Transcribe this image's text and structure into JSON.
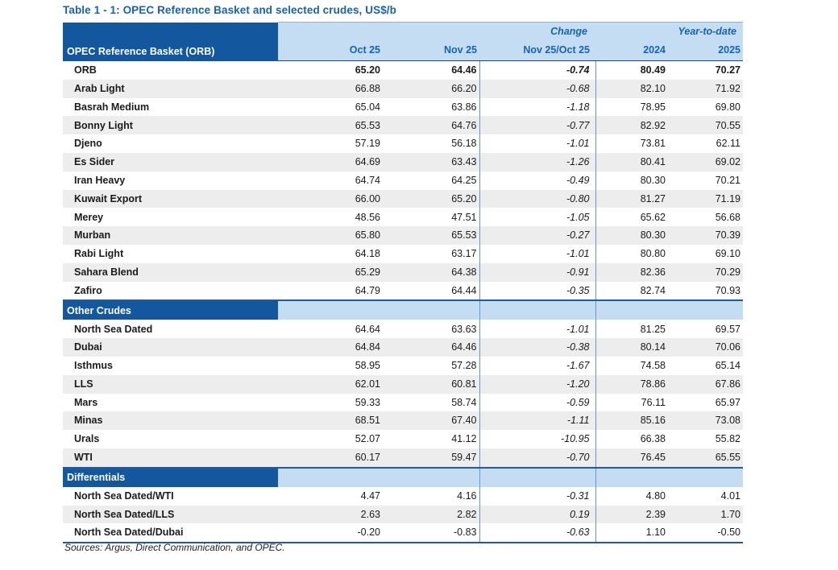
{
  "title": "Table 1 - 1: OPEC Reference Basket and selected crudes, US$/b",
  "header": {
    "name_column": "OPEC Reference Basket (ORB)",
    "group_change": "Change",
    "group_ytd": "Year-to-date",
    "columns": [
      "Oct 25",
      "Nov 25",
      "Nov 25/Oct 25",
      "2024",
      "2025"
    ]
  },
  "table": {
    "sections": [
      {
        "label": null,
        "rows": [
          {
            "name": "ORB",
            "values": [
              "65.20",
              "64.46",
              "-0.74",
              "80.49",
              "70.27"
            ],
            "bold": true
          },
          {
            "name": "Arab Light",
            "values": [
              "66.88",
              "66.20",
              "-0.68",
              "82.10",
              "71.92"
            ]
          },
          {
            "name": "Basrah Medium",
            "values": [
              "65.04",
              "63.86",
              "-1.18",
              "78.95",
              "69.80"
            ]
          },
          {
            "name": "Bonny Light",
            "values": [
              "65.53",
              "64.76",
              "-0.77",
              "82.92",
              "70.55"
            ]
          },
          {
            "name": "Djeno",
            "values": [
              "57.19",
              "56.18",
              "-1.01",
              "73.81",
              "62.11"
            ]
          },
          {
            "name": "Es Sider",
            "values": [
              "64.69",
              "63.43",
              "-1.26",
              "80.41",
              "69.02"
            ]
          },
          {
            "name": "Iran Heavy",
            "values": [
              "64.74",
              "64.25",
              "-0.49",
              "80.30",
              "70.21"
            ]
          },
          {
            "name": "Kuwait Export",
            "values": [
              "66.00",
              "65.20",
              "-0.80",
              "81.27",
              "71.19"
            ]
          },
          {
            "name": "Merey",
            "values": [
              "48.56",
              "47.51",
              "-1.05",
              "65.62",
              "56.68"
            ]
          },
          {
            "name": "Murban",
            "values": [
              "65.80",
              "65.53",
              "-0.27",
              "80.30",
              "70.39"
            ]
          },
          {
            "name": "Rabi Light",
            "values": [
              "64.18",
              "63.17",
              "-1.01",
              "80.80",
              "69.10"
            ]
          },
          {
            "name": "Sahara Blend",
            "values": [
              "65.29",
              "64.38",
              "-0.91",
              "82.36",
              "70.29"
            ]
          },
          {
            "name": "Zafiro",
            "values": [
              "64.79",
              "64.44",
              "-0.35",
              "82.74",
              "70.93"
            ]
          }
        ]
      },
      {
        "label": "Other Crudes",
        "rows": [
          {
            "name": "North Sea Dated",
            "values": [
              "64.64",
              "63.63",
              "-1.01",
              "81.25",
              "69.57"
            ]
          },
          {
            "name": "Dubai",
            "values": [
              "64.84",
              "64.46",
              "-0.38",
              "80.14",
              "70.06"
            ]
          },
          {
            "name": "Isthmus",
            "values": [
              "58.95",
              "57.28",
              "-1.67",
              "74.58",
              "65.14"
            ]
          },
          {
            "name": "LLS",
            "values": [
              "62.01",
              "60.81",
              "-1.20",
              "78.86",
              "67.86"
            ]
          },
          {
            "name": "Mars",
            "values": [
              "59.33",
              "58.74",
              "-0.59",
              "76.11",
              "65.97"
            ]
          },
          {
            "name": "Minas",
            "values": [
              "68.51",
              "67.40",
              "-1.11",
              "85.16",
              "73.08"
            ]
          },
          {
            "name": "Urals",
            "values": [
              "52.07",
              "41.12",
              "-10.95",
              "66.38",
              "55.82"
            ]
          },
          {
            "name": "WTI",
            "values": [
              "60.17",
              "59.47",
              "-0.70",
              "76.45",
              "65.55"
            ]
          }
        ]
      },
      {
        "label": "Differentials",
        "rows": [
          {
            "name": "North Sea Dated/WTI",
            "values": [
              "4.47",
              "4.16",
              "-0.31",
              "4.80",
              "4.01"
            ]
          },
          {
            "name": "North Sea Dated/LLS",
            "values": [
              "2.63",
              "2.82",
              "0.19",
              "2.39",
              "1.70"
            ]
          },
          {
            "name": "North Sea Dated/Dubai",
            "values": [
              "-0.20",
              "-0.83",
              "-0.63",
              "1.10",
              "-0.50"
            ]
          }
        ]
      }
    ]
  },
  "source_note": "Sources:  Argus, Direct Communication, and OPEC.",
  "colors": {
    "header_dark_blue": "#13589E",
    "header_light_blue": "#C4DDF2",
    "header_text_blue": "#1663B2",
    "title_blue": "#1663B2",
    "column_line_blue": "#5B9BD5",
    "section_border_blue": "#1F5C99",
    "row_stripe_gray": "#EDEDED"
  }
}
